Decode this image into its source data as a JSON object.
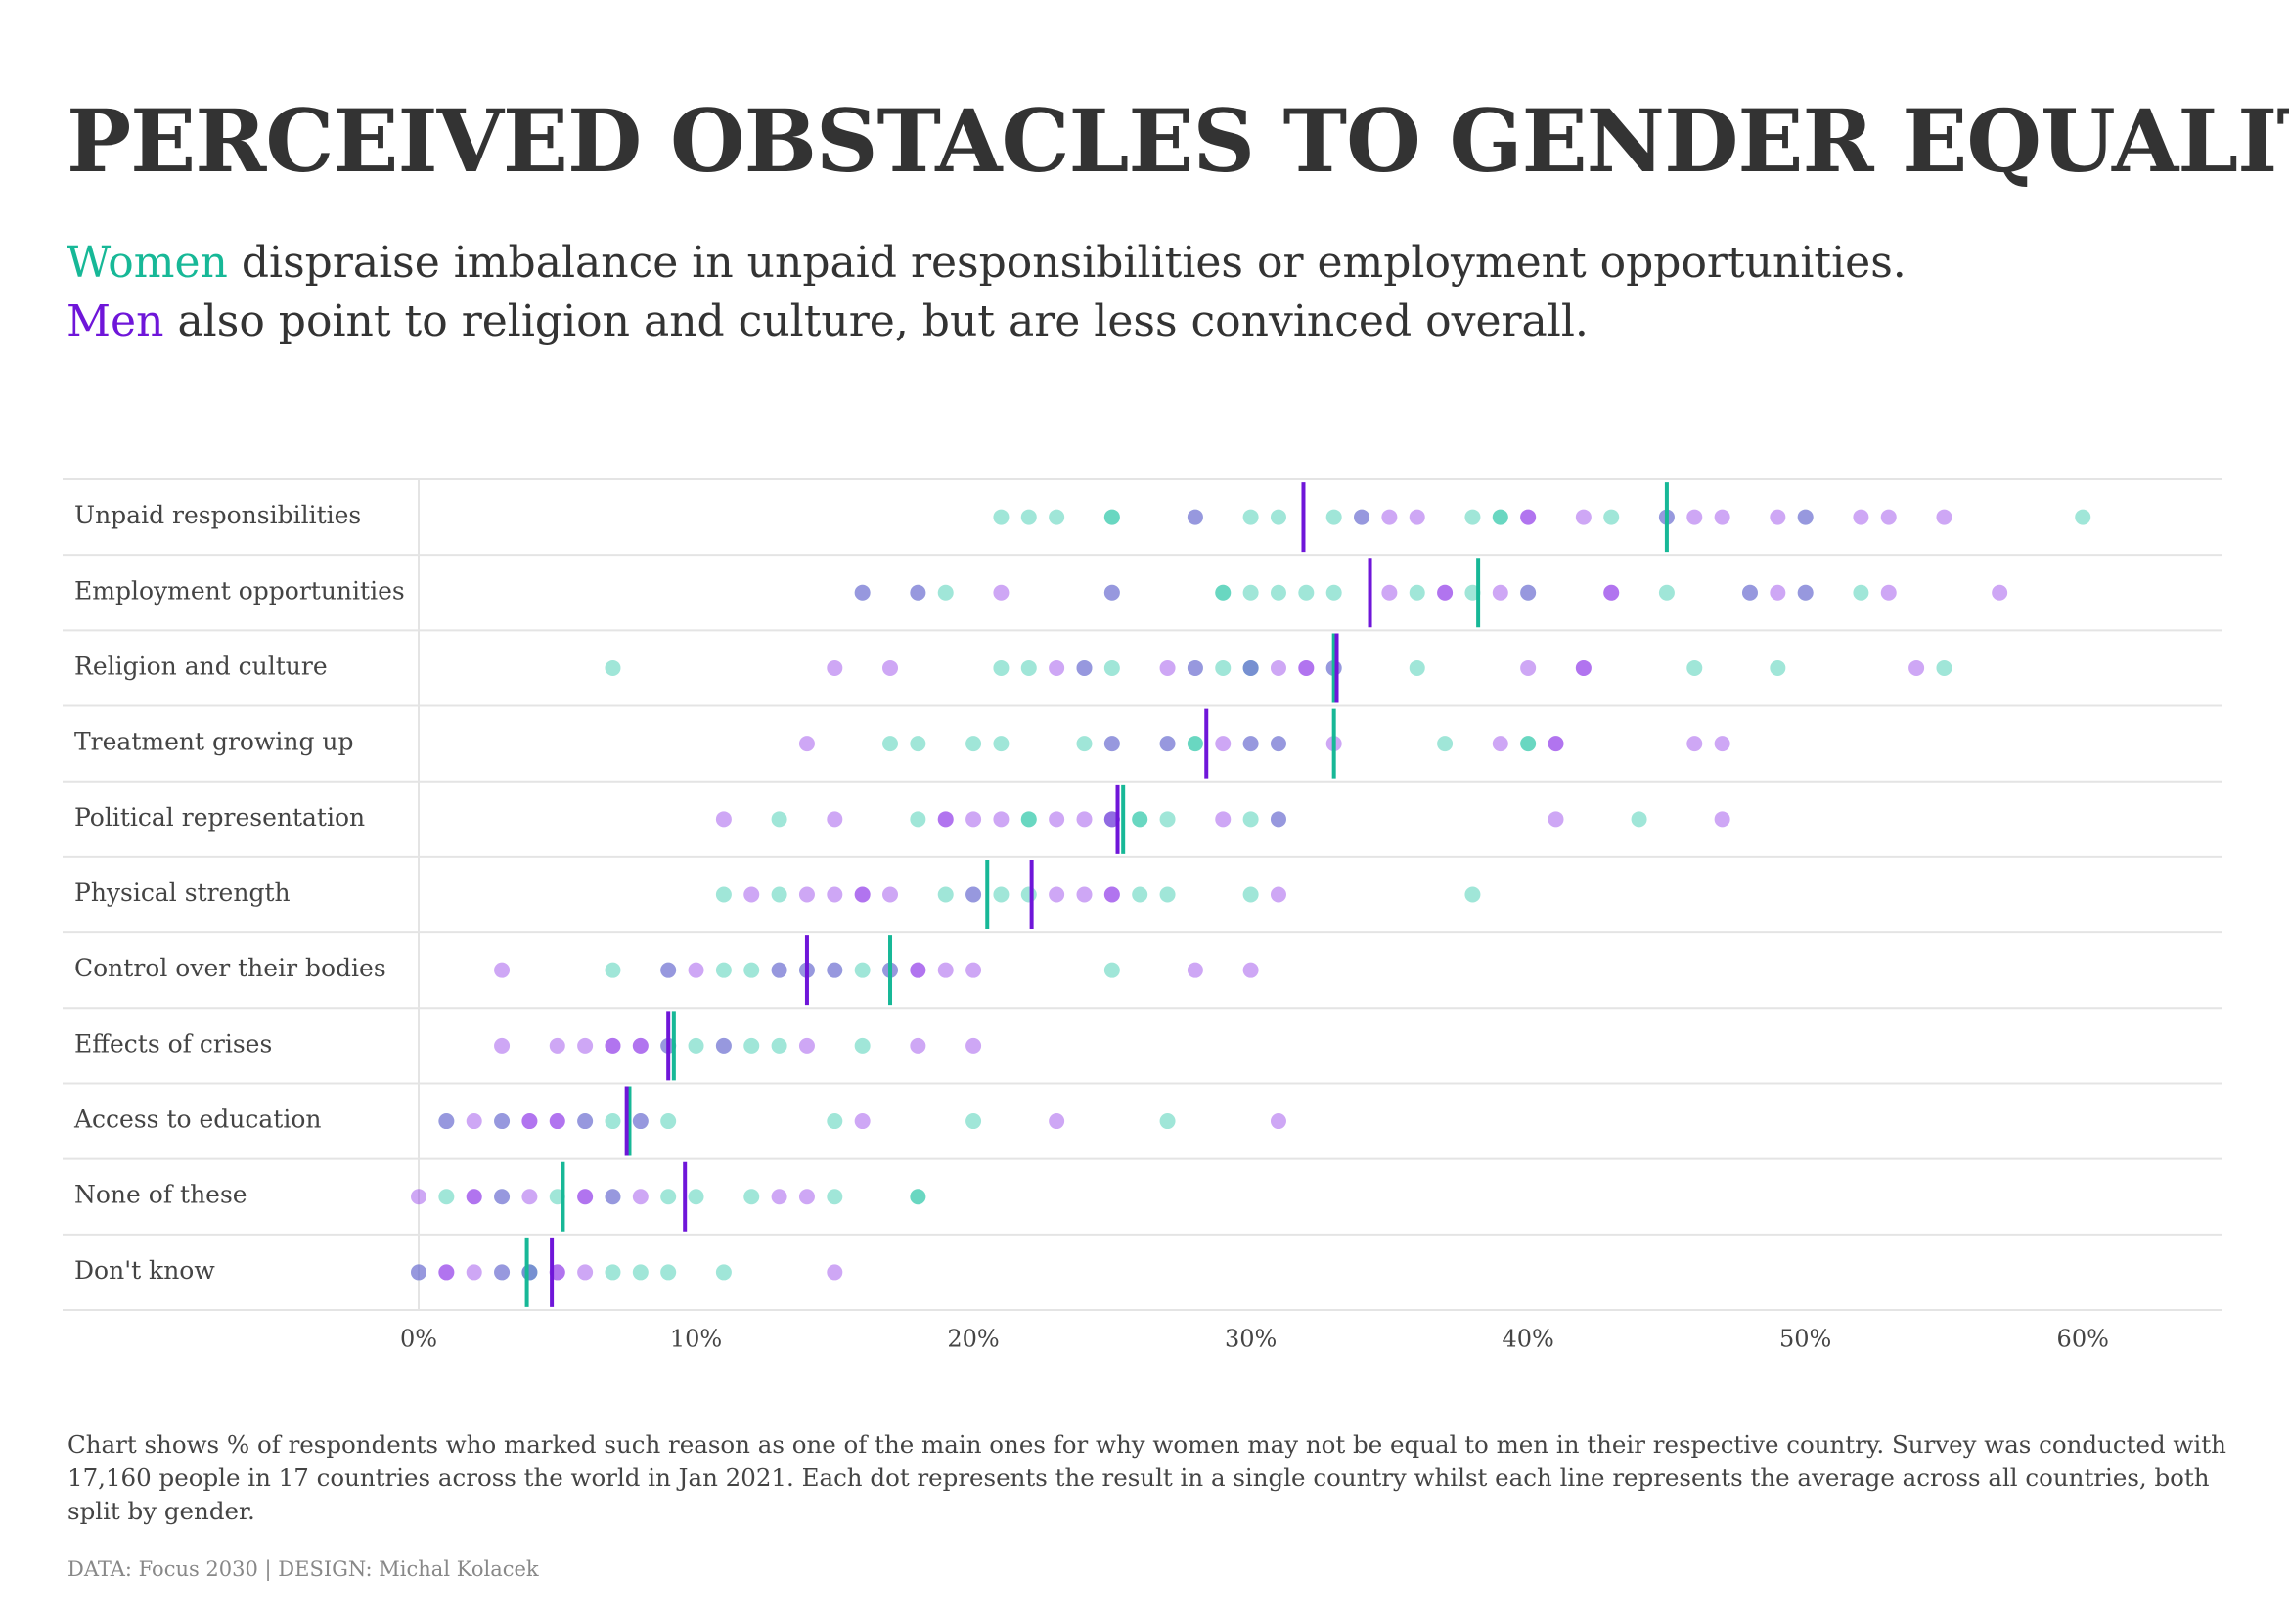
{
  "chart_data": {
    "type": "dot_strip",
    "title": "PERCEIVED OBSTACLES TO GENDER EQUALITY",
    "subtitle": [
      {
        "highlight": "Women",
        "text": "dispraise imbalance in unpaid responsibilities or employment opportunities."
      },
      {
        "highlight": "Men",
        "text": "also point to religion and culture, but are less convinced overall."
      }
    ],
    "categories": [
      "Unpaid responsibilities",
      "Employment opportunities",
      "Religion and culture",
      "Treatment growing up",
      "Political representation",
      "Physical strength",
      "Control over their bodies",
      "Effects of crises",
      "Access to education",
      "None of these",
      "Don't know"
    ],
    "series": [
      {
        "name": "Women",
        "color": "#1dc4a2",
        "line_color": "#17b897",
        "averages": [
          45,
          38.2,
          33,
          33,
          25.4,
          20.5,
          17,
          9.2,
          7.6,
          5.2,
          3.9
        ],
        "values": [
          [
            21,
            22,
            23,
            25,
            25,
            28,
            30,
            31,
            33,
            34,
            38,
            39,
            39,
            43,
            45,
            50,
            60
          ],
          [
            16,
            18,
            19,
            25,
            29,
            29,
            30,
            31,
            32,
            33,
            36,
            38,
            40,
            45,
            48,
            50,
            52
          ],
          [
            7,
            21,
            22,
            24,
            25,
            28,
            29,
            30,
            30,
            33,
            36,
            46,
            49,
            55
          ],
          [
            17,
            18,
            20,
            21,
            24,
            25,
            27,
            28,
            28,
            30,
            31,
            37,
            40,
            40
          ],
          [
            13,
            18,
            22,
            22,
            25,
            26,
            26,
            27,
            30,
            31,
            44
          ],
          [
            11,
            13,
            19,
            20,
            21,
            22,
            26,
            27,
            30,
            38
          ],
          [
            7,
            9,
            11,
            12,
            13,
            14,
            15,
            16,
            17,
            25
          ],
          [
            9,
            10,
            11,
            12,
            13,
            16
          ],
          [
            1,
            3,
            6,
            7,
            8,
            9,
            15,
            20,
            27
          ],
          [
            1,
            3,
            5,
            7,
            9,
            10,
            12,
            15,
            18,
            18
          ],
          [
            0,
            3,
            4,
            4,
            7,
            8,
            9,
            11
          ]
        ]
      },
      {
        "name": "Men",
        "color": "#8b2ee6",
        "line_color": "#6f16d9",
        "averages": [
          31.9,
          34.3,
          33.1,
          28.4,
          25.2,
          22.1,
          14,
          9,
          7.5,
          9.6,
          4.8
        ],
        "values": [
          [
            28,
            34,
            35,
            36,
            40,
            40,
            42,
            45,
            46,
            47,
            49,
            50,
            52,
            53,
            55
          ],
          [
            16,
            18,
            21,
            25,
            35,
            37,
            37,
            39,
            40,
            43,
            43,
            48,
            49,
            50,
            53,
            57
          ],
          [
            15,
            17,
            23,
            24,
            27,
            28,
            30,
            31,
            32,
            32,
            33,
            40,
            42,
            42,
            54
          ],
          [
            14,
            25,
            27,
            29,
            30,
            31,
            33,
            39,
            41,
            41,
            46,
            47
          ],
          [
            11,
            15,
            19,
            19,
            20,
            21,
            23,
            24,
            25,
            25,
            29,
            31,
            41,
            47
          ],
          [
            12,
            14,
            15,
            16,
            16,
            17,
            20,
            23,
            24,
            25,
            25,
            31
          ],
          [
            3,
            9,
            10,
            13,
            14,
            15,
            17,
            18,
            18,
            19,
            20,
            28,
            30
          ],
          [
            3,
            5,
            6,
            7,
            7,
            8,
            8,
            9,
            11,
            14,
            18,
            20
          ],
          [
            1,
            2,
            3,
            4,
            4,
            5,
            5,
            6,
            8,
            16,
            23,
            31
          ],
          [
            0,
            2,
            2,
            3,
            4,
            6,
            6,
            7,
            8,
            13,
            14
          ],
          [
            0,
            1,
            1,
            2,
            3,
            4,
            5,
            5,
            6,
            15
          ]
        ]
      }
    ],
    "xlim": [
      0,
      65
    ],
    "xticks": [
      {
        "value": 0,
        "label": "0%"
      },
      {
        "value": 10,
        "label": "10%"
      },
      {
        "value": 20,
        "label": "20%"
      },
      {
        "value": 30,
        "label": "30%"
      },
      {
        "value": 40,
        "label": "40%"
      },
      {
        "value": 50,
        "label": "50%"
      },
      {
        "value": 60,
        "label": "60%"
      }
    ],
    "note": "Chart shows % of respondents who marked such reason as one of the main ones for why women may not be equal to men in their respective country. Survey was conducted with 17,160 people in 17 countries across the world in Jan 2021. Each dot represents the result in a single country whilst each line represents the average across all countries, both split by gender.",
    "credit": "DATA: Focus 2030 | DESIGN: Michal Kolacek"
  }
}
